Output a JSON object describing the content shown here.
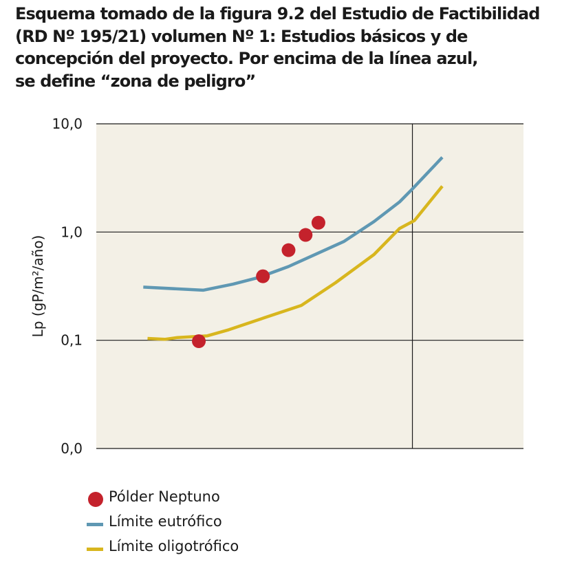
{
  "title": "Esquema tomado de la figura 9.2 del Estudio de Factibilidad\n(RD Nº 195/21) volumen Nº 1: Estudios básicos y de\nconcepción del proyecto. Por encima de la línea azul,\nse define “zona de peligro”",
  "colors": {
    "background": "#f3f0e6",
    "eutrofico": "#5f98b3",
    "oligotrofico": "#d8b61e",
    "polder": "#c4222c",
    "grid": "#1a1a1a"
  },
  "chart_data": {
    "type": "line",
    "title": "Esquema tomado de la figura 9.2 del Estudio de Factibilidad (RD Nº 195/21) volumen Nº 1: Estudios básicos y de concepción del proyecto. Por encima de la línea azul, se define “zona de peligro”",
    "xlabel": "",
    "ylabel": "Lp (gP/m²/año)",
    "y_scale": "log",
    "ylim": [
      0.01,
      10
    ],
    "xlim": [
      0,
      1
    ],
    "x_ticks": [],
    "y_ticks": [
      {
        "value": 0.01,
        "label": "0,0"
      },
      {
        "value": 0.1,
        "label": "0,1"
      },
      {
        "value": 1,
        "label": "1,0"
      },
      {
        "value": 10,
        "label": "10,0"
      }
    ],
    "grid": "horizontal at y ticks, one vertical line",
    "vertical_line_x": 0.74,
    "legend_position": "bottom-left",
    "series": [
      {
        "name": "Límite eutrófico",
        "kind": "line",
        "color": "#5f98b3",
        "points": [
          [
            0.11,
            0.31
          ],
          [
            0.25,
            0.29
          ],
          [
            0.32,
            0.33
          ],
          [
            0.38,
            0.38
          ],
          [
            0.45,
            0.48
          ],
          [
            0.52,
            0.64
          ],
          [
            0.58,
            0.82
          ],
          [
            0.65,
            1.25
          ],
          [
            0.71,
            1.9
          ],
          [
            0.74,
            2.5
          ],
          [
            0.81,
            4.9
          ]
        ]
      },
      {
        "name": "Límite oligotrófico",
        "kind": "line",
        "color": "#d8b61e",
        "points": [
          [
            0.12,
            0.104
          ],
          [
            0.16,
            0.102
          ],
          [
            0.19,
            0.106
          ],
          [
            0.26,
            0.11
          ],
          [
            0.31,
            0.125
          ],
          [
            0.38,
            0.155
          ],
          [
            0.48,
            0.21
          ],
          [
            0.56,
            0.34
          ],
          [
            0.65,
            0.62
          ],
          [
            0.71,
            1.08
          ],
          [
            0.745,
            1.28
          ],
          [
            0.81,
            2.65
          ]
        ]
      },
      {
        "name": "Pólder Neptuno",
        "kind": "scatter",
        "color": "#c4222c",
        "points": [
          [
            0.24,
            0.098
          ],
          [
            0.39,
            0.39
          ],
          [
            0.45,
            0.68
          ],
          [
            0.49,
            0.94
          ],
          [
            0.52,
            1.22
          ]
        ]
      }
    ]
  },
  "legend": [
    {
      "label": "Pólder Neptuno",
      "kind": "dot",
      "color": "#c4222c"
    },
    {
      "label": "Límite eutrófico",
      "kind": "line",
      "color": "#5f98b3"
    },
    {
      "label": "Límite oligotrófico",
      "kind": "line",
      "color": "#d8b61e"
    }
  ]
}
